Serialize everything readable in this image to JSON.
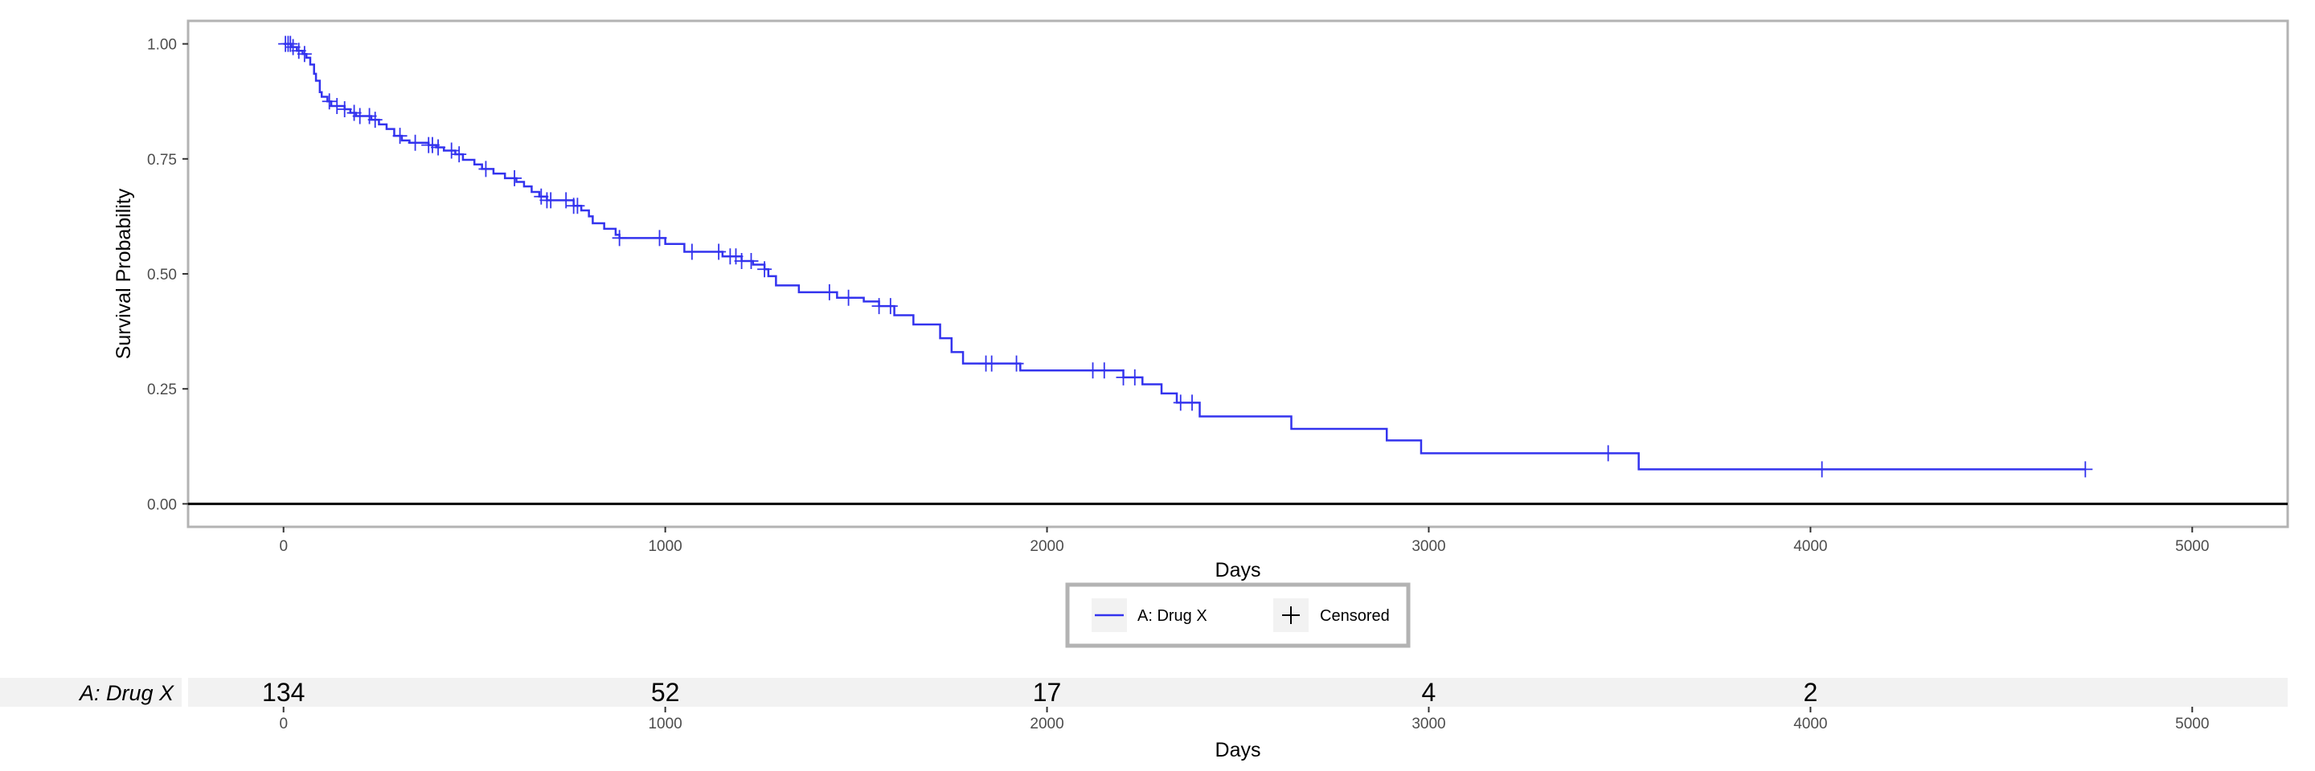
{
  "chart_data": {
    "type": "line",
    "subtype": "kaplan-meier",
    "xlabel": "Days",
    "ylabel": "Survival Probability",
    "xlim": [
      -250,
      5250
    ],
    "ylim": [
      -0.05,
      1.05
    ],
    "x_ticks": [
      0,
      1000,
      2000,
      3000,
      4000,
      5000
    ],
    "y_ticks": [
      0,
      0.25,
      0.5,
      0.75,
      1
    ],
    "y_tick_labels": [
      "0.00",
      "0.25",
      "0.50",
      "0.75",
      "1.00"
    ],
    "grid": false,
    "reference_line_y": 0,
    "series": [
      {
        "name": "A: Drug X",
        "color": "#3333ee",
        "steps": [
          [
            0,
            1.0
          ],
          [
            20,
            0.993
          ],
          [
            35,
            0.985
          ],
          [
            50,
            0.978
          ],
          [
            60,
            0.97
          ],
          [
            70,
            0.955
          ],
          [
            80,
            0.935
          ],
          [
            85,
            0.92
          ],
          [
            95,
            0.895
          ],
          [
            100,
            0.885
          ],
          [
            115,
            0.875
          ],
          [
            125,
            0.865
          ],
          [
            160,
            0.858
          ],
          [
            175,
            0.85
          ],
          [
            190,
            0.843
          ],
          [
            230,
            0.835
          ],
          [
            250,
            0.825
          ],
          [
            270,
            0.815
          ],
          [
            290,
            0.8
          ],
          [
            310,
            0.79
          ],
          [
            330,
            0.785
          ],
          [
            380,
            0.78
          ],
          [
            400,
            0.775
          ],
          [
            420,
            0.768
          ],
          [
            450,
            0.76
          ],
          [
            470,
            0.748
          ],
          [
            500,
            0.738
          ],
          [
            520,
            0.728
          ],
          [
            550,
            0.718
          ],
          [
            580,
            0.708
          ],
          [
            610,
            0.7
          ],
          [
            630,
            0.69
          ],
          [
            650,
            0.678
          ],
          [
            670,
            0.668
          ],
          [
            690,
            0.66
          ],
          [
            760,
            0.648
          ],
          [
            780,
            0.638
          ],
          [
            800,
            0.625
          ],
          [
            810,
            0.61
          ],
          [
            840,
            0.598
          ],
          [
            870,
            0.585
          ],
          [
            880,
            0.578
          ],
          [
            1000,
            0.565
          ],
          [
            1050,
            0.548
          ],
          [
            1150,
            0.538
          ],
          [
            1200,
            0.528
          ],
          [
            1230,
            0.52
          ],
          [
            1260,
            0.51
          ],
          [
            1270,
            0.495
          ],
          [
            1290,
            0.475
          ],
          [
            1350,
            0.46
          ],
          [
            1450,
            0.448
          ],
          [
            1520,
            0.44
          ],
          [
            1560,
            0.43
          ],
          [
            1600,
            0.41
          ],
          [
            1650,
            0.39
          ],
          [
            1720,
            0.36
          ],
          [
            1750,
            0.33
          ],
          [
            1780,
            0.305
          ],
          [
            1930,
            0.29
          ],
          [
            2200,
            0.275
          ],
          [
            2250,
            0.26
          ],
          [
            2300,
            0.24
          ],
          [
            2340,
            0.22
          ],
          [
            2400,
            0.19
          ],
          [
            2640,
            0.163
          ],
          [
            2890,
            0.138
          ],
          [
            2980,
            0.11
          ],
          [
            3550,
            0.075
          ],
          [
            4720,
            0.075
          ]
        ],
        "censored_x": [
          5,
          12,
          18,
          25,
          40,
          55,
          120,
          140,
          160,
          185,
          200,
          225,
          240,
          305,
          345,
          380,
          390,
          405,
          440,
          460,
          530,
          605,
          675,
          690,
          700,
          740,
          760,
          770,
          880,
          985,
          1070,
          1140,
          1170,
          1185,
          1200,
          1225,
          1260,
          1430,
          1480,
          1560,
          1590,
          1840,
          1855,
          1920,
          2120,
          2150,
          2200,
          2230,
          2350,
          2380,
          3470,
          4030,
          4720
        ]
      }
    ],
    "legend": {
      "placement": "bottom",
      "items": [
        {
          "label": "A: Drug X",
          "symbol": "line"
        },
        {
          "label": "Censored",
          "symbol": "plus"
        }
      ]
    },
    "risk_table": {
      "row_label": "A: Drug X",
      "times": [
        0,
        1000,
        2000,
        3000,
        4000
      ],
      "counts": [
        "134",
        "52",
        "17",
        "4",
        "2"
      ],
      "x_ticks": [
        0,
        1000,
        2000,
        3000,
        4000,
        5000
      ],
      "xlabel": "Days"
    }
  }
}
